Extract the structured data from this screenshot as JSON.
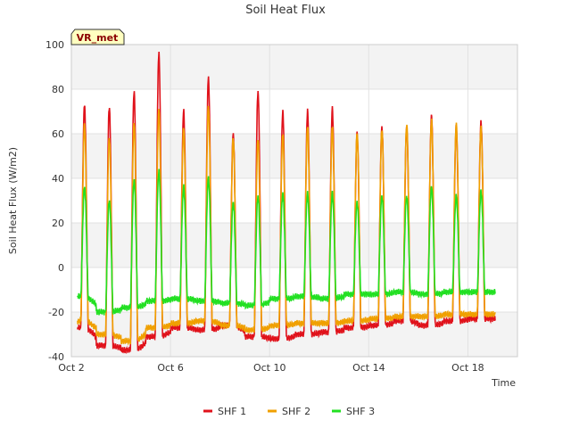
{
  "chart_data": {
    "type": "line",
    "title": "Soil Heat Flux",
    "xlabel": "Time",
    "ylabel": "Soil Heat Flux (W/m2)",
    "ylim": [
      -40,
      100
    ],
    "xlim": [
      0,
      18
    ],
    "yticks": [
      -40,
      -20,
      0,
      20,
      40,
      60,
      80,
      100
    ],
    "xticks": [
      {
        "value": 0,
        "label": "Oct 2"
      },
      {
        "value": 4,
        "label": "Oct 6"
      },
      {
        "value": 8,
        "label": "Oct 10"
      },
      {
        "value": 12,
        "label": "Oct 14"
      },
      {
        "value": 16,
        "label": "Oct 18"
      }
    ],
    "x_range_days": [
      0.25,
      17.1
    ],
    "badge": "VR_met",
    "legend": {
      "position": "bottom-center"
    },
    "series": [
      {
        "name": "SHF 1",
        "color": "#e0121b",
        "daily_peaks": [
          73,
          72,
          79,
          96,
          70,
          85,
          60,
          79,
          70,
          70,
          71,
          60,
          63,
          63,
          68,
          63,
          65
        ],
        "daily_mins": [
          -27,
          -35,
          -37,
          -31,
          -27,
          -28,
          -26,
          -31,
          -32,
          -30,
          -29,
          -27,
          -26,
          -24,
          -26,
          -24,
          -23
        ]
      },
      {
        "name": "SHF 2",
        "color": "#f0a000",
        "daily_peaks": [
          64,
          58,
          65,
          71,
          62,
          72,
          58,
          58,
          60,
          63,
          63,
          60,
          62,
          64,
          66,
          64,
          63
        ],
        "daily_mins": [
          -24,
          -30,
          -33,
          -27,
          -25,
          -24,
          -26,
          -28,
          -26,
          -25,
          -25,
          -24,
          -23,
          -22,
          -22,
          -21,
          -21
        ]
      },
      {
        "name": "SHF 3",
        "color": "#22e022",
        "daily_peaks": [
          36,
          30,
          39,
          43,
          36,
          40,
          29,
          32,
          33,
          33,
          33,
          29,
          32,
          32,
          36,
          32,
          34
        ],
        "daily_mins": [
          -13,
          -20,
          -18,
          -15,
          -14,
          -15,
          -16,
          -17,
          -14,
          -13,
          -14,
          -12,
          -12,
          -11,
          -12,
          -11,
          -11
        ]
      }
    ]
  }
}
